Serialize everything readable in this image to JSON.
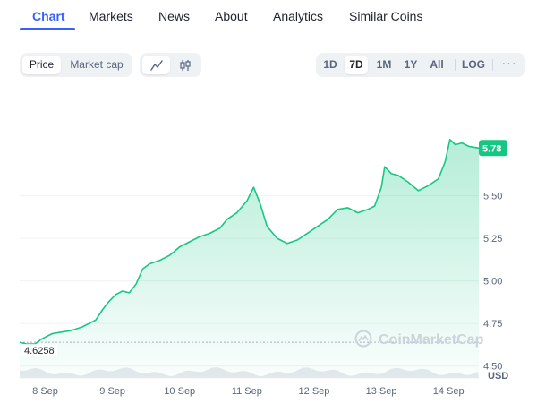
{
  "tabs": [
    {
      "label": "Chart",
      "active": true
    },
    {
      "label": "Markets",
      "active": false
    },
    {
      "label": "News",
      "active": false
    },
    {
      "label": "About",
      "active": false
    },
    {
      "label": "Analytics",
      "active": false
    },
    {
      "label": "Similar Coins",
      "active": false
    }
  ],
  "toolbar": {
    "metric": {
      "price": "Price",
      "market_cap": "Market cap",
      "selected": "Price"
    },
    "chart_style": {
      "line_icon": "line-chart-icon",
      "candle_icon": "candlestick-icon",
      "selected": "line"
    },
    "ranges": [
      "1D",
      "7D",
      "1M",
      "1Y",
      "All"
    ],
    "selected_range": "7D",
    "log_label": "LOG",
    "more_icon": "more-horizontal-icon"
  },
  "colors": {
    "accent": "#3861fb",
    "line": "#16c784",
    "price_tag": "#16c784",
    "volume": "#e6e9ee"
  },
  "watermark": "CoinMarketCap",
  "currency_label": "USD",
  "chart_data": {
    "type": "area",
    "start_value_label": "4.6258",
    "current_value_label": "5.78",
    "x_tick_labels": [
      "8 Sep",
      "9 Sep",
      "10 Sep",
      "11 Sep",
      "12 Sep",
      "13 Sep",
      "14 Sep"
    ],
    "y_tick_labels": [
      "5.50",
      "5.25",
      "5.00",
      "4.75",
      "4.50"
    ],
    "y_ticks": [
      5.5,
      5.25,
      5.0,
      4.75,
      4.5
    ],
    "ylim": [
      4.43,
      6.05
    ],
    "grid": true,
    "x_days": [
      7.62,
      14.45
    ],
    "series": [
      {
        "points": [
          [
            7.62,
            4.64
          ],
          [
            7.72,
            4.63
          ],
          [
            7.85,
            4.63
          ],
          [
            7.95,
            4.66
          ],
          [
            8.1,
            4.69
          ],
          [
            8.25,
            4.7
          ],
          [
            8.4,
            4.71
          ],
          [
            8.55,
            4.73
          ],
          [
            8.65,
            4.75
          ],
          [
            8.75,
            4.77
          ],
          [
            8.85,
            4.83
          ],
          [
            8.95,
            4.88
          ],
          [
            9.05,
            4.92
          ],
          [
            9.15,
            4.94
          ],
          [
            9.25,
            4.93
          ],
          [
            9.35,
            4.98
          ],
          [
            9.45,
            5.07
          ],
          [
            9.55,
            5.1
          ],
          [
            9.7,
            5.12
          ],
          [
            9.85,
            5.15
          ],
          [
            10.0,
            5.2
          ],
          [
            10.15,
            5.23
          ],
          [
            10.3,
            5.26
          ],
          [
            10.45,
            5.28
          ],
          [
            10.6,
            5.31
          ],
          [
            10.7,
            5.36
          ],
          [
            10.85,
            5.4
          ],
          [
            11.0,
            5.47
          ],
          [
            11.1,
            5.55
          ],
          [
            11.2,
            5.45
          ],
          [
            11.3,
            5.32
          ],
          [
            11.45,
            5.25
          ],
          [
            11.6,
            5.22
          ],
          [
            11.75,
            5.24
          ],
          [
            11.9,
            5.28
          ],
          [
            12.05,
            5.32
          ],
          [
            12.2,
            5.36
          ],
          [
            12.35,
            5.42
          ],
          [
            12.5,
            5.43
          ],
          [
            12.65,
            5.4
          ],
          [
            12.8,
            5.42
          ],
          [
            12.9,
            5.44
          ],
          [
            13.0,
            5.55
          ],
          [
            13.05,
            5.67
          ],
          [
            13.15,
            5.63
          ],
          [
            13.25,
            5.62
          ],
          [
            13.4,
            5.58
          ],
          [
            13.55,
            5.53
          ],
          [
            13.7,
            5.56
          ],
          [
            13.85,
            5.6
          ],
          [
            13.95,
            5.7
          ],
          [
            14.02,
            5.83
          ],
          [
            14.1,
            5.8
          ],
          [
            14.2,
            5.81
          ],
          [
            14.3,
            5.79
          ],
          [
            14.45,
            5.78
          ]
        ]
      }
    ]
  }
}
